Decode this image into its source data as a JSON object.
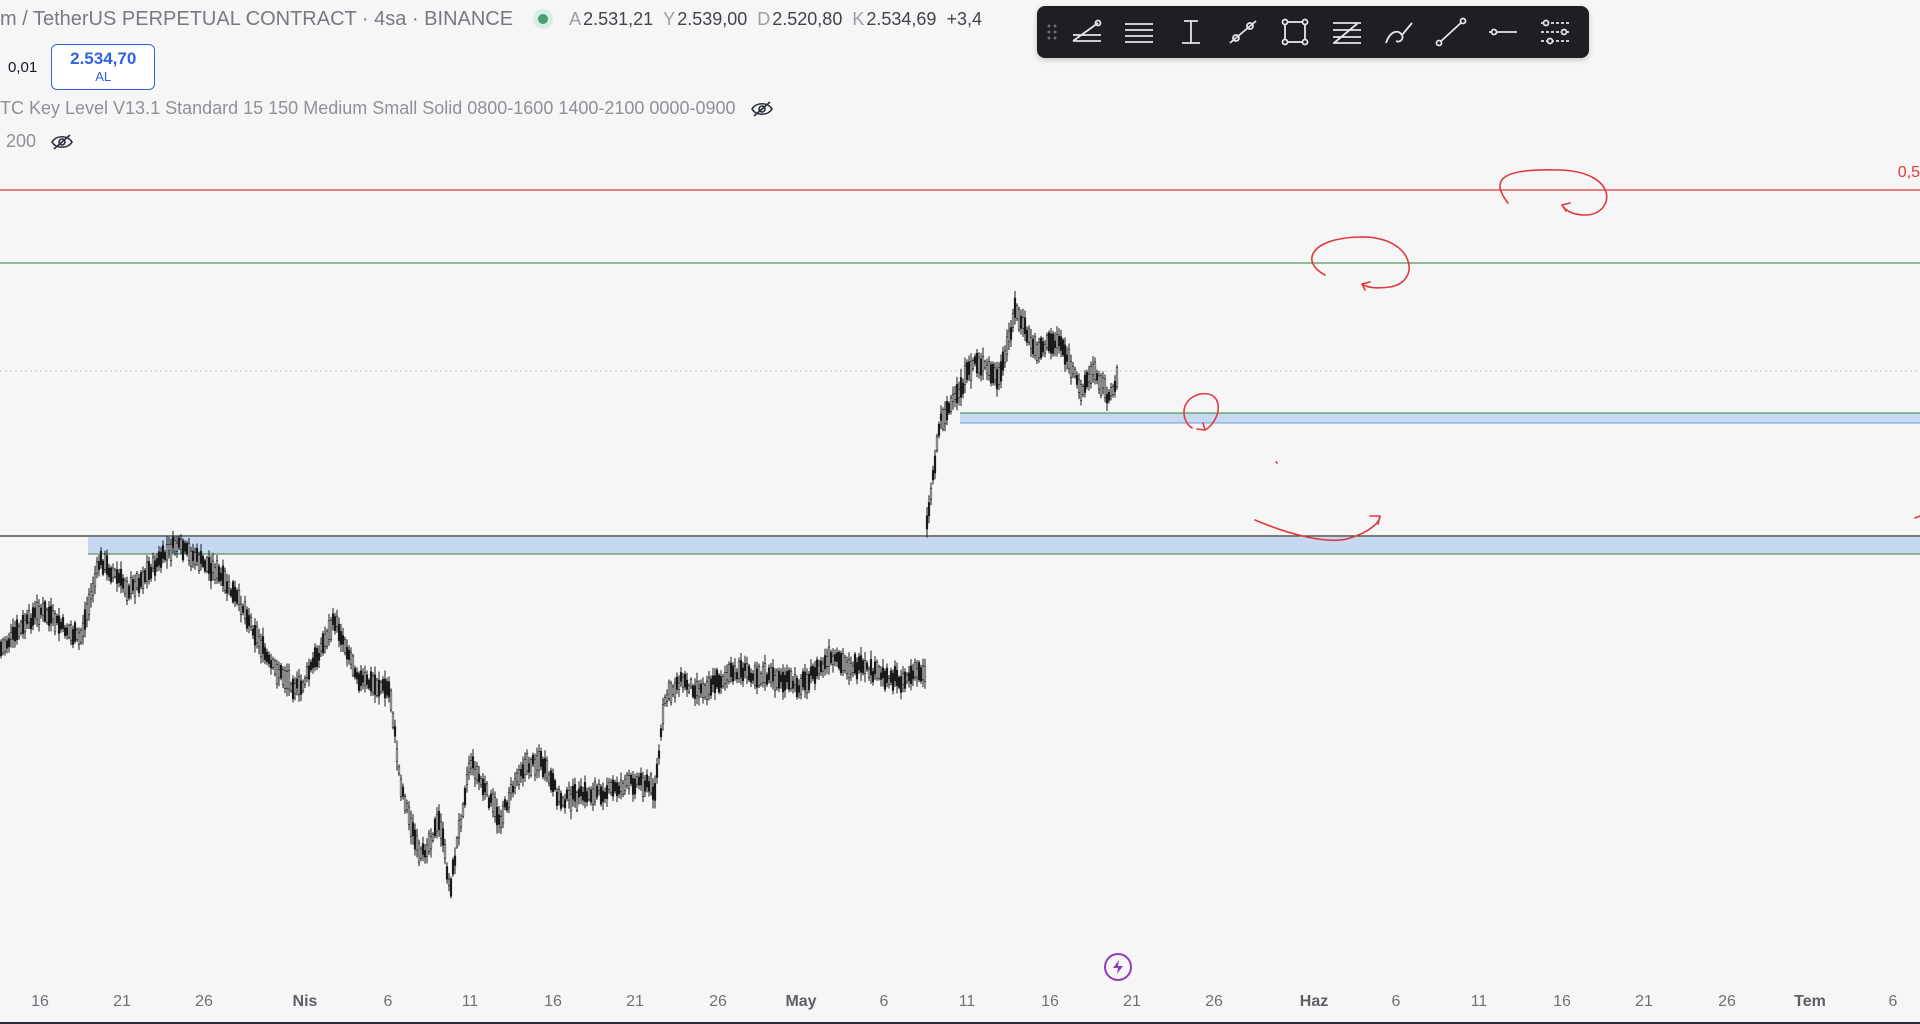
{
  "header": {
    "symbol": "m / TetherUS PERPETUAL CONTRACT · 4sa · BINANCE",
    "ohlc": [
      {
        "key": "A",
        "value": "2.531,21"
      },
      {
        "key": "Y",
        "value": "2.539,00"
      },
      {
        "key": "D",
        "value": "2.520,80"
      },
      {
        "key": "K",
        "value": "2.534,69"
      }
    ],
    "change": "+3,4"
  },
  "trade": {
    "step": "0,01",
    "price": "2.534,70",
    "action": "AL"
  },
  "indicators": [
    {
      "label": "TC Key Level V13.1 Standard 15 150 Medium Small Solid 0800-1600 1400-2100 0000-0900",
      "icon": "eye-slash-icon"
    },
    {
      "label": "200",
      "icon": "eye-slash-icon"
    }
  ],
  "toolbar": {
    "tools": [
      "trend-angle-icon",
      "parallel-lines-icon",
      "vertical-measure-icon",
      "line-with-points-icon",
      "rectangle-icon",
      "fib-lines-icon",
      "brush-icon",
      "trend-line-icon",
      "horizontal-ray-icon",
      "settings-lines-icon"
    ]
  },
  "right_price_label": "0,5",
  "x_axis": {
    "labels": [
      {
        "text": "16",
        "bold": false
      },
      {
        "text": "21",
        "bold": false
      },
      {
        "text": "26",
        "bold": false
      },
      {
        "text": "Nis",
        "bold": true
      },
      {
        "text": "6",
        "bold": false
      },
      {
        "text": "11",
        "bold": false
      },
      {
        "text": "16",
        "bold": false
      },
      {
        "text": "21",
        "bold": false
      },
      {
        "text": "26",
        "bold": false
      },
      {
        "text": "May",
        "bold": true
      },
      {
        "text": "6",
        "bold": false
      },
      {
        "text": "11",
        "bold": false
      },
      {
        "text": "16",
        "bold": false
      },
      {
        "text": "21",
        "bold": false
      },
      {
        "text": "26",
        "bold": false
      },
      {
        "text": "Haz",
        "bold": true
      },
      {
        "text": "6",
        "bold": false
      },
      {
        "text": "11",
        "bold": false
      },
      {
        "text": "16",
        "bold": false
      },
      {
        "text": "21",
        "bold": false
      },
      {
        "text": "26",
        "bold": false
      },
      {
        "text": "Tem",
        "bold": true
      },
      {
        "text": "6",
        "bold": false
      }
    ]
  },
  "colors": {
    "background": "#f6f6f6",
    "candle": "#1a1a1a",
    "zone_fill": "#c6d9f1",
    "green_line": "#4f9a5a",
    "red_line": "#e0393e",
    "buy_blue": "#2f63e0",
    "annotation_red": "#e0393e"
  }
}
